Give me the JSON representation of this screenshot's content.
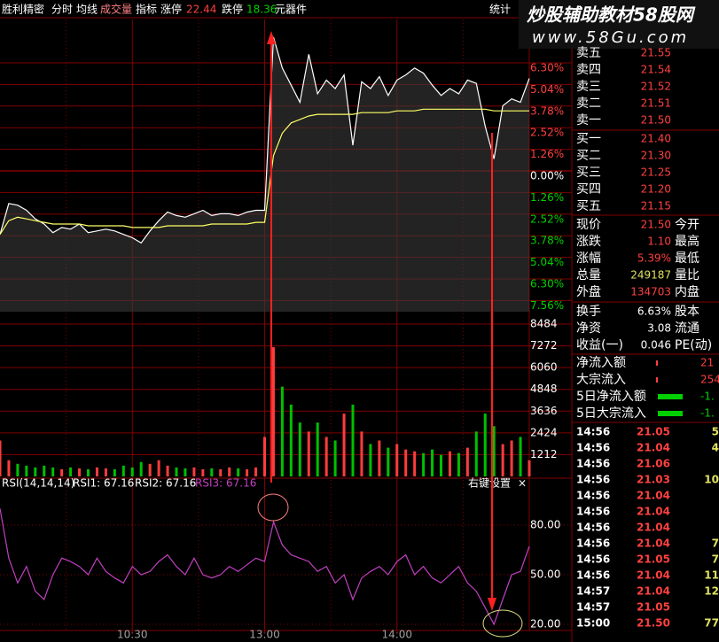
{
  "toolbar": {
    "stock": "胜利精密",
    "items": [
      "分时",
      "均线",
      "成交量",
      "指标"
    ],
    "limit_up_label": "涨停",
    "limit_up": "22.44",
    "limit_down_label": "跌停",
    "limit_down": "18.36",
    "sector": "元器件",
    "stats_button": "统计"
  },
  "watermark": {
    "title": "炒股辅助教材58股网",
    "url": "www.58Gu.com"
  },
  "chart_data": [
    {
      "type": "line",
      "x": [
        0,
        4,
        8,
        12,
        16,
        20,
        24,
        28,
        32,
        36,
        40,
        44,
        48,
        52,
        56,
        60,
        64,
        68,
        72,
        76,
        80,
        84,
        88,
        92,
        96,
        100,
        104,
        108,
        112,
        116,
        120,
        124,
        128,
        132,
        136,
        140,
        144,
        148,
        152,
        156,
        160,
        164,
        168,
        172,
        176,
        180,
        184,
        188,
        192,
        196,
        200,
        204,
        208,
        212,
        216,
        220,
        224,
        228,
        232,
        236,
        240
      ],
      "xlim": [
        0,
        240
      ],
      "xticks": [
        {
          "value": 60,
          "label": "10:30"
        },
        {
          "value": 120,
          "label": "13:00"
        },
        {
          "value": 180,
          "label": "14:00"
        }
      ],
      "ylim": [
        -8.21,
        8.83
      ],
      "yticks": [
        {
          "value": 6.3,
          "label": "6.30%"
        },
        {
          "value": 5.04,
          "label": "5.04%"
        },
        {
          "value": 3.78,
          "label": "3.78%"
        },
        {
          "value": 2.52,
          "label": "2.52%"
        },
        {
          "value": 1.26,
          "label": "1.26%"
        },
        {
          "value": 0,
          "label": "0.00%"
        },
        {
          "value": -1.26,
          "label": "1.26%"
        },
        {
          "value": -2.52,
          "label": "2.52%"
        },
        {
          "value": -3.78,
          "label": "3.78%"
        },
        {
          "value": -5.04,
          "label": "5.04%"
        },
        {
          "value": -6.3,
          "label": "6.30%"
        },
        {
          "value": -7.56,
          "label": "7.56%"
        }
      ],
      "grid": true,
      "series": [
        {
          "color": "#ffffff",
          "values": [
            -3.7,
            -1.9,
            -2.0,
            -2.3,
            -2.8,
            -3.1,
            -3.6,
            -3.3,
            -3.4,
            -3.1,
            -3.6,
            -3.5,
            -3.4,
            -3.5,
            -3.7,
            -3.9,
            -4.2,
            -3.5,
            -2.9,
            -2.4,
            -2.6,
            -2.7,
            -2.5,
            -2.3,
            -2.6,
            -2.5,
            -2.5,
            -2.6,
            -2.4,
            -2.3,
            -2.3,
            7.8,
            6.0,
            5.0,
            4.0,
            6.8,
            4.5,
            5.3,
            4.8,
            5.6,
            1.5,
            5.2,
            4.8,
            5.5,
            4.4,
            5.3,
            5.6,
            6.0,
            5.7,
            5.0,
            4.4,
            4.8,
            4.5,
            5.3,
            5.1,
            2.6,
            0.7,
            3.8,
            4.2,
            4.0,
            5.39
          ]
        },
        {
          "color": "#ffff66",
          "values": [
            -3.7,
            -2.9,
            -2.7,
            -2.8,
            -2.9,
            -3.0,
            -3.1,
            -3.1,
            -3.1,
            -3.1,
            -3.2,
            -3.2,
            -3.2,
            -3.2,
            -3.2,
            -3.3,
            -3.3,
            -3.3,
            -3.3,
            -3.2,
            -3.2,
            -3.2,
            -3.2,
            -3.2,
            -3.1,
            -3.1,
            -3.1,
            -3.1,
            -3.1,
            -3.0,
            -3.0,
            0.9,
            2.2,
            2.8,
            3.0,
            3.2,
            3.3,
            3.3,
            3.3,
            3.3,
            3.3,
            3.4,
            3.4,
            3.4,
            3.4,
            3.5,
            3.5,
            3.5,
            3.6,
            3.6,
            3.6,
            3.6,
            3.6,
            3.6,
            3.6,
            3.6,
            3.5,
            3.5,
            3.5,
            3.5,
            3.5
          ]
        }
      ]
    },
    {
      "type": "bar",
      "up_color": "#ff3c3c",
      "down_color": "#00c000",
      "values": [
        2000,
        900,
        700,
        600,
        500,
        600,
        500,
        400,
        500,
        450,
        400,
        500,
        450,
        400,
        600,
        500,
        800,
        700,
        900,
        600,
        500,
        450,
        500,
        400,
        450,
        400,
        500,
        450,
        400,
        500,
        2200,
        7200,
        5000,
        4000,
        3000,
        2500,
        3000,
        2200,
        2000,
        3500,
        4000,
        2500,
        1800,
        2000,
        1600,
        1800,
        1500,
        1400,
        1300,
        1500,
        1200,
        1400,
        1300,
        1600,
        2500,
        3500,
        2800,
        1800,
        2000,
        2200,
        900
      ],
      "ylim": [
        0,
        9177
      ],
      "yticks": [
        1212,
        2424,
        3636,
        4848,
        6060,
        7272,
        8484
      ],
      "grid": true
    },
    {
      "type": "line",
      "title": "RSI(14,14,14)",
      "legend": [
        "RSI1: 67.16",
        "RSI2: 67.16",
        "RSI3: 67.16"
      ],
      "settings": "右键设置",
      "close": "×",
      "ylim": [
        16.25,
        95
      ],
      "yticks": [
        {
          "value": 80,
          "label": "80.00"
        },
        {
          "value": 50,
          "label": "50.00"
        },
        {
          "value": 20,
          "label": "20.00"
        }
      ],
      "grid": true,
      "series": [
        {
          "color": "#c040c0",
          "values": [
            90,
            60,
            45,
            55,
            40,
            35,
            50,
            60,
            58,
            55,
            50,
            60,
            52,
            48,
            45,
            55,
            50,
            52,
            58,
            62,
            55,
            50,
            60,
            50,
            48,
            50,
            55,
            52,
            56,
            60,
            58,
            82,
            68,
            62,
            60,
            58,
            52,
            55,
            45,
            50,
            35,
            48,
            52,
            55,
            50,
            58,
            62,
            50,
            55,
            48,
            45,
            50,
            55,
            45,
            40,
            30,
            20,
            35,
            50,
            52,
            67.16
          ]
        }
      ]
    }
  ],
  "order_book": {
    "sell": [
      {
        "label": "卖五",
        "price": "21.55"
      },
      {
        "label": "卖四",
        "price": "21.54"
      },
      {
        "label": "卖三",
        "price": "21.52"
      },
      {
        "label": "卖二",
        "price": "21.51"
      },
      {
        "label": "卖一",
        "price": "21.50"
      }
    ],
    "buy": [
      {
        "label": "买一",
        "price": "21.40"
      },
      {
        "label": "买二",
        "price": "21.30"
      },
      {
        "label": "买三",
        "price": "21.25"
      },
      {
        "label": "买四",
        "price": "21.20"
      },
      {
        "label": "买五",
        "price": "21.15"
      }
    ]
  },
  "quote": [
    {
      "label": "现价",
      "value": "21.50",
      "label2": "今开",
      "color": "#ff4040"
    },
    {
      "label": "涨跌",
      "value": "1.10",
      "label2": "最高",
      "color": "#ff4040"
    },
    {
      "label": "涨幅",
      "value": "5.39%",
      "label2": "最低",
      "color": "#ff4040"
    },
    {
      "label": "总量",
      "value": "249187",
      "label2": "量比",
      "color": "#e0e060"
    },
    {
      "label": "外盘",
      "value": "134703",
      "label2": "内盘",
      "color": "#ff4040"
    },
    {
      "label": "换手",
      "value": "6.63%",
      "label2": "股本",
      "color": "#ffffff"
    },
    {
      "label": "净资",
      "value": "3.08",
      "label2": "流通",
      "color": "#ffffff"
    },
    {
      "label": "收益(一)",
      "value": "0.046",
      "label2": "PE(动)",
      "color": "#ffffff"
    }
  ],
  "flows": [
    {
      "label": "净流入额",
      "value": "21",
      "color": "#ff4040"
    },
    {
      "label": "大宗流入",
      "value": "254",
      "color": "#ff4040"
    },
    {
      "label": "5日净流入额",
      "value": "-1.",
      "color": "#00d000"
    },
    {
      "label": "5日大宗流入",
      "value": "-1.",
      "color": "#00d000"
    }
  ],
  "ticks": [
    {
      "time": "14:56",
      "price": "21.05",
      "volume": "5"
    },
    {
      "time": "14:56",
      "price": "21.04",
      "volume": "4"
    },
    {
      "time": "14:56",
      "price": "21.06"
    },
    {
      "time": "14:56",
      "price": "21.03",
      "volume": "10"
    },
    {
      "time": "14:56",
      "price": "21.04"
    },
    {
      "time": "14:56",
      "price": "21.04"
    },
    {
      "time": "14:56",
      "price": "21.04"
    },
    {
      "time": "14:56",
      "price": "21.04",
      "volume": "7"
    },
    {
      "time": "14:56",
      "price": "21.05",
      "volume": "7"
    },
    {
      "time": "14:56",
      "price": "21.04",
      "volume": "11"
    },
    {
      "time": "14:57",
      "price": "21.04",
      "volume": "12"
    },
    {
      "time": "14:57",
      "price": "21.05"
    },
    {
      "time": "15:00",
      "price": "21.50",
      "volume": "77"
    }
  ]
}
